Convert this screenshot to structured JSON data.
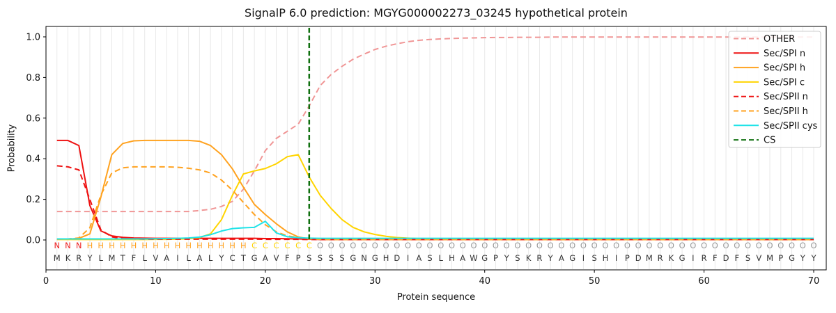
{
  "chart_data": {
    "type": "line",
    "title": "SignalP 6.0 prediction: MGYG000002273_03245 hypothetical protein",
    "xlabel": "Protein sequence",
    "ylabel": "Probability",
    "x_ticks": [
      0,
      10,
      20,
      30,
      40,
      50,
      60,
      70
    ],
    "y_ticks": [
      "0.0",
      "0.2",
      "0.4",
      "0.6",
      "0.8",
      "1.0"
    ],
    "xlim": [
      0,
      71.1
    ],
    "ylim": [
      -0.147,
      1.051
    ],
    "grid": "vertical line per residue, light gray",
    "legend_position": "upper right",
    "x_start": 1,
    "series": [
      {
        "name": "OTHER",
        "color": "#f09595",
        "style": "dashed",
        "values": [
          0.14,
          0.14,
          0.14,
          0.14,
          0.14,
          0.14,
          0.14,
          0.14,
          0.14,
          0.14,
          0.14,
          0.14,
          0.14,
          0.145,
          0.151,
          0.165,
          0.19,
          0.25,
          0.34,
          0.44,
          0.5,
          0.535,
          0.57,
          0.66,
          0.76,
          0.815,
          0.855,
          0.89,
          0.915,
          0.938,
          0.954,
          0.966,
          0.976,
          0.983,
          0.987,
          0.99,
          0.992,
          0.994,
          0.995,
          0.996,
          0.997,
          0.997,
          0.998,
          0.998,
          0.998,
          0.999,
          0.999,
          0.999,
          0.999,
          0.999,
          0.999,
          0.999,
          0.999,
          0.999,
          0.999,
          0.999,
          0.999,
          0.999,
          0.999,
          0.999,
          0.999,
          0.999,
          0.999,
          0.999,
          0.999,
          0.999,
          0.999,
          0.999,
          0.999,
          0.999
        ]
      },
      {
        "name": "Sec/SPI n",
        "color": "#ee1111",
        "style": "solid",
        "values": [
          0.49,
          0.49,
          0.465,
          0.17,
          0.045,
          0.02,
          0.013,
          0.01,
          0.009,
          0.008,
          0.008,
          0.008,
          0.008,
          0.008,
          0.008,
          0.008,
          0.008,
          0.008,
          0.008,
          0.007,
          0.007,
          0.006,
          0.005,
          0.004,
          0.002,
          0.002,
          0.002,
          0.002,
          0.002,
          0.002,
          0.002,
          0.002,
          0.002,
          0.002,
          0.002,
          0.002,
          0.002,
          0.002,
          0.002,
          0.002,
          0.002,
          0.002,
          0.002,
          0.002,
          0.002,
          0.002,
          0.002,
          0.002,
          0.002,
          0.002,
          0.002,
          0.002,
          0.002,
          0.002,
          0.002,
          0.002,
          0.002,
          0.002,
          0.002,
          0.002,
          0.002,
          0.002,
          0.002,
          0.002,
          0.002,
          0.002,
          0.002,
          0.002,
          0.002,
          0.002
        ]
      },
      {
        "name": "Sec/SPI h",
        "color": "#ffa21f",
        "style": "solid",
        "values": [
          0.004,
          0.004,
          0.008,
          0.03,
          0.21,
          0.42,
          0.475,
          0.488,
          0.49,
          0.49,
          0.49,
          0.49,
          0.49,
          0.486,
          0.465,
          0.42,
          0.35,
          0.26,
          0.175,
          0.125,
          0.08,
          0.04,
          0.015,
          0.005,
          0.003,
          0.002,
          0.002,
          0.002,
          0.002,
          0.002,
          0.002,
          0.002,
          0.002,
          0.002,
          0.002,
          0.002,
          0.002,
          0.002,
          0.002,
          0.002,
          0.002,
          0.002,
          0.002,
          0.002,
          0.002,
          0.002,
          0.002,
          0.002,
          0.002,
          0.002,
          0.002,
          0.002,
          0.002,
          0.002,
          0.002,
          0.002,
          0.002,
          0.002,
          0.002,
          0.002,
          0.002,
          0.002,
          0.002,
          0.002,
          0.002,
          0.002,
          0.002,
          0.002,
          0.002,
          0.002
        ]
      },
      {
        "name": "Sec/SPI c",
        "color": "#ffd400",
        "style": "solid",
        "values": [
          0.002,
          0.002,
          0.002,
          0.002,
          0.002,
          0.002,
          0.002,
          0.002,
          0.002,
          0.003,
          0.003,
          0.004,
          0.006,
          0.012,
          0.03,
          0.1,
          0.22,
          0.325,
          0.34,
          0.352,
          0.375,
          0.41,
          0.42,
          0.31,
          0.22,
          0.155,
          0.1,
          0.062,
          0.04,
          0.027,
          0.018,
          0.012,
          0.009,
          0.007,
          0.005,
          0.004,
          0.004,
          0.003,
          0.003,
          0.003,
          0.003,
          0.003,
          0.003,
          0.003,
          0.003,
          0.003,
          0.003,
          0.003,
          0.003,
          0.003,
          0.003,
          0.003,
          0.003,
          0.003,
          0.003,
          0.003,
          0.003,
          0.003,
          0.003,
          0.003,
          0.003,
          0.003,
          0.003,
          0.003,
          0.003,
          0.003,
          0.003,
          0.003,
          0.003,
          0.003
        ]
      },
      {
        "name": "Sec/SPII n",
        "color": "#ee1111",
        "style": "dashed",
        "values": [
          0.365,
          0.36,
          0.345,
          0.2,
          0.05,
          0.015,
          0.007,
          0.005,
          0.004,
          0.004,
          0.004,
          0.004,
          0.004,
          0.004,
          0.004,
          0.004,
          0.004,
          0.004,
          0.004,
          0.003,
          0.003,
          0.003,
          0.003,
          0.002,
          0.002,
          0.002,
          0.002,
          0.002,
          0.002,
          0.002,
          0.002,
          0.002,
          0.002,
          0.002,
          0.002,
          0.002,
          0.002,
          0.002,
          0.002,
          0.002,
          0.002,
          0.002,
          0.002,
          0.002,
          0.002,
          0.002,
          0.002,
          0.002,
          0.002,
          0.002,
          0.002,
          0.002,
          0.002,
          0.002,
          0.002,
          0.002,
          0.002,
          0.002,
          0.002,
          0.002,
          0.002,
          0.002,
          0.002,
          0.002,
          0.002,
          0.002,
          0.002,
          0.002,
          0.002,
          0.002
        ]
      },
      {
        "name": "Sec/SPII h",
        "color": "#ffa21f",
        "style": "dashed",
        "values": [
          0.004,
          0.005,
          0.01,
          0.06,
          0.22,
          0.33,
          0.355,
          0.36,
          0.36,
          0.36,
          0.36,
          0.358,
          0.353,
          0.345,
          0.33,
          0.295,
          0.245,
          0.185,
          0.125,
          0.075,
          0.04,
          0.02,
          0.012,
          0.006,
          0.004,
          0.003,
          0.003,
          0.003,
          0.003,
          0.003,
          0.003,
          0.003,
          0.003,
          0.003,
          0.003,
          0.003,
          0.003,
          0.003,
          0.003,
          0.003,
          0.003,
          0.003,
          0.003,
          0.003,
          0.003,
          0.003,
          0.003,
          0.003,
          0.003,
          0.003,
          0.003,
          0.003,
          0.003,
          0.003,
          0.003,
          0.003,
          0.003,
          0.003,
          0.003,
          0.003,
          0.003,
          0.003,
          0.003,
          0.003,
          0.003,
          0.003,
          0.003,
          0.003,
          0.003,
          0.003
        ]
      },
      {
        "name": "Sec/SPII cys",
        "color": "#1fe3e8",
        "style": "solid",
        "values": [
          0.005,
          0.005,
          0.005,
          0.005,
          0.005,
          0.005,
          0.005,
          0.005,
          0.005,
          0.006,
          0.007,
          0.008,
          0.01,
          0.014,
          0.026,
          0.044,
          0.056,
          0.06,
          0.062,
          0.092,
          0.035,
          0.016,
          0.011,
          0.009,
          0.008,
          0.008,
          0.008,
          0.008,
          0.008,
          0.008,
          0.008,
          0.008,
          0.008,
          0.008,
          0.008,
          0.008,
          0.008,
          0.008,
          0.008,
          0.008,
          0.008,
          0.008,
          0.008,
          0.008,
          0.008,
          0.008,
          0.008,
          0.008,
          0.008,
          0.008,
          0.008,
          0.008,
          0.008,
          0.008,
          0.008,
          0.008,
          0.008,
          0.008,
          0.008,
          0.008,
          0.008,
          0.008,
          0.008,
          0.008,
          0.008,
          0.008,
          0.008,
          0.008,
          0.008,
          0.008
        ]
      }
    ],
    "cs_marker": {
      "name": "CS",
      "position": 24,
      "color": "#107010",
      "style": "dashed"
    },
    "sequence": "MKRYLMTFLVAILALYCTGAVFPSSSSGNGHDIASLHAWGPYSKRYAGISHIPDMRKGIRFDFSVMPGYY",
    "sequence_color": "#333333",
    "regions": [
      {
        "label": "N",
        "from": 1,
        "to": 3,
        "color": "#ee2222"
      },
      {
        "label": "H",
        "from": 4,
        "to": 18,
        "color": "#ffa21f"
      },
      {
        "label": "C",
        "from": 19,
        "to": 24,
        "color": "#ffd400"
      },
      {
        "label": "O",
        "from": 25,
        "to": 70,
        "color": "#999999"
      }
    ],
    "grid_color": "#e8e8e8",
    "axis_color": "#000000",
    "legend_bg": "rgba(255,255,255,0.85)",
    "legend_border": "#cccccc"
  }
}
